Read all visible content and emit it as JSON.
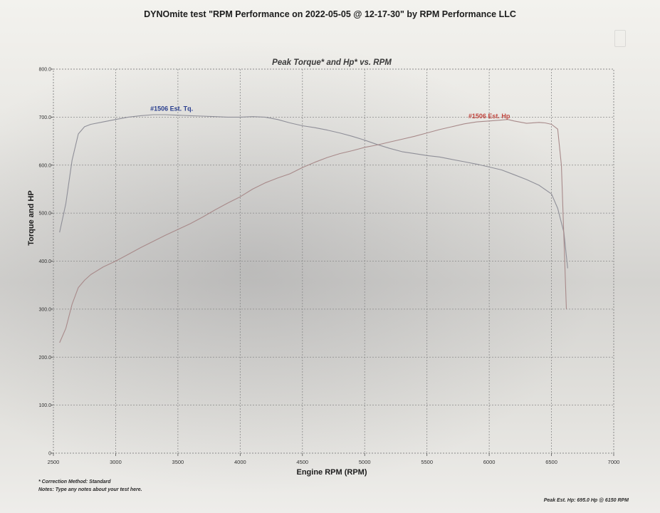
{
  "page": {
    "title": "DYNOmite test \"RPM Performance  on 2022-05-05 @ 12-17-30\" by RPM Performance LLC",
    "correction_note": "* Correction Method: Standard",
    "notes": "Notes: Type any notes about your test here.",
    "peak_text": "Peak Est. Hp: 695.0 Hp @ 6150 RPM"
  },
  "colors": {
    "torque": "#8f8f98",
    "hp": "#a88a8a",
    "torque_label": "#2b3f8f",
    "hp_label": "#c0453e",
    "grid": "#8a8a8a"
  },
  "chart_data": {
    "type": "line",
    "title": "Peak Torque* and Hp* vs. RPM",
    "xlabel": "Engine RPM (RPM)",
    "ylabel": "Torque and HP",
    "xlim": [
      2500,
      7000
    ],
    "ylim": [
      0,
      800
    ],
    "x_ticks": [
      2500,
      3000,
      3500,
      4000,
      4500,
      5000,
      5500,
      6000,
      6500,
      7000
    ],
    "y_ticks": [
      0,
      100,
      200,
      300,
      400,
      500,
      600,
      700,
      800
    ],
    "y_tick_labels": [
      "0",
      "100.0",
      "200.0",
      "300.0",
      "400.0",
      "500.0",
      "600.0",
      "700.0",
      "800.0"
    ],
    "grid": true,
    "series": [
      {
        "name": "#1506 Est. Tq.",
        "x": [
          2550,
          2600,
          2650,
          2700,
          2750,
          2800,
          2900,
          3000,
          3100,
          3200,
          3300,
          3400,
          3500,
          3600,
          3700,
          3800,
          3900,
          4000,
          4100,
          4200,
          4300,
          4400,
          4500,
          4600,
          4700,
          4800,
          4900,
          5000,
          5100,
          5200,
          5300,
          5400,
          5500,
          5600,
          5700,
          5800,
          5900,
          6000,
          6100,
          6200,
          6300,
          6400,
          6500,
          6550,
          6600,
          6630
        ],
        "y": [
          460,
          520,
          610,
          665,
          680,
          685,
          690,
          695,
          700,
          703,
          705,
          705,
          704,
          703,
          702,
          701,
          700,
          700,
          701,
          700,
          695,
          688,
          682,
          678,
          673,
          667,
          660,
          652,
          643,
          635,
          628,
          624,
          620,
          617,
          612,
          607,
          602,
          596,
          590,
          580,
          570,
          558,
          540,
          510,
          460,
          385
        ]
      },
      {
        "name": "#1506 Est. Hp",
        "x": [
          2550,
          2600,
          2650,
          2700,
          2750,
          2800,
          2900,
          3000,
          3100,
          3200,
          3300,
          3400,
          3500,
          3600,
          3700,
          3800,
          3900,
          4000,
          4100,
          4200,
          4300,
          4400,
          4500,
          4600,
          4700,
          4800,
          4900,
          5000,
          5100,
          5200,
          5300,
          5400,
          5500,
          5600,
          5700,
          5800,
          5900,
          6000,
          6100,
          6150,
          6200,
          6300,
          6400,
          6450,
          6500,
          6550,
          6580,
          6600,
          6620
        ],
        "y": [
          230,
          260,
          310,
          345,
          360,
          372,
          388,
          400,
          414,
          428,
          441,
          454,
          466,
          478,
          492,
          507,
          521,
          534,
          550,
          563,
          573,
          582,
          595,
          606,
          616,
          624,
          630,
          637,
          642,
          648,
          654,
          660,
          667,
          674,
          680,
          686,
          690,
          692,
          694,
          695,
          692,
          687,
          689,
          688,
          685,
          675,
          600,
          450,
          300
        ]
      }
    ]
  }
}
